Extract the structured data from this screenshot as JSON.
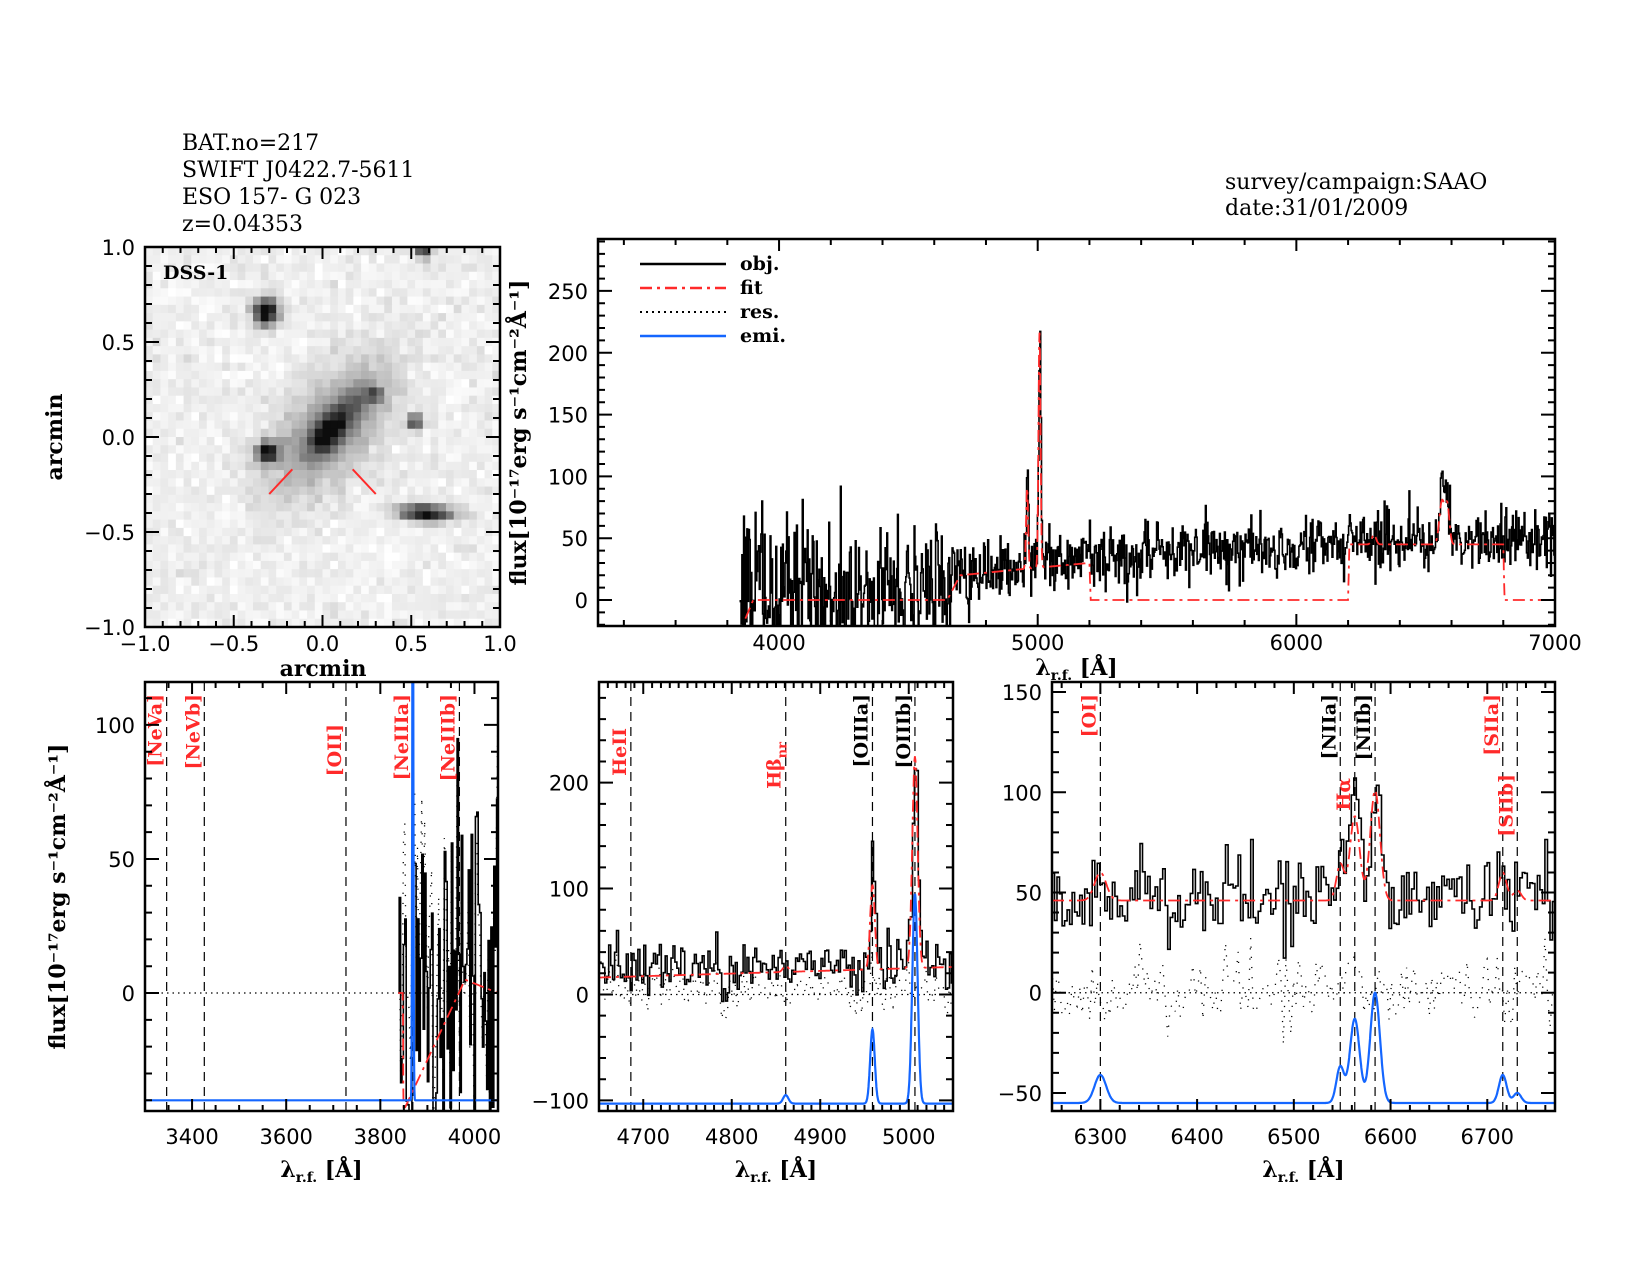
{
  "header": {
    "bat_no": "BAT.no=217",
    "swift_name": "SWIFT J0422.7-5611",
    "object_name": "ESO 157- G 023",
    "redshift": "z=0.04353",
    "survey": "survey/campaign:SAAO",
    "date": "date:31/01/2009"
  },
  "colors": {
    "obj": "#000000",
    "fit": "#ff2a2a",
    "res": "#000000",
    "emi": "#1466ff",
    "label_red": "#ff2a2a",
    "label_black": "#000000"
  },
  "image_panel": {
    "survey_label": "DSS-1",
    "xlabel": "arcmin",
    "ylabel": "arcmin",
    "xlim": [
      -1,
      1
    ],
    "ylim": [
      -1,
      1
    ],
    "xticks": [
      -1.0,
      -0.5,
      0.0,
      0.5,
      1.0
    ],
    "yticks": [
      -1.0,
      -0.5,
      0.0,
      0.5,
      1.0
    ],
    "colormap": "inverted grayscale",
    "marker_color": "#ff2a2a"
  },
  "legend": {
    "placement": "top-left",
    "entries": [
      {
        "key": "obj",
        "label": "obj.",
        "style": "solid"
      },
      {
        "key": "fit",
        "label": "fit",
        "style": "dash-dot"
      },
      {
        "key": "res",
        "label": "res.",
        "style": "dotted"
      },
      {
        "key": "emi",
        "label": "emi.",
        "style": "solid"
      }
    ]
  },
  "chart_data": [
    {
      "id": "full",
      "type": "line",
      "title": "",
      "xlabel": {
        "symbol": "λ",
        "subscript": "r.f.",
        "unit": " [Å]"
      },
      "ylabel": "flux[10⁻¹⁷erg s⁻¹cm⁻²Å⁻¹]",
      "xlim": [
        3300,
        7000
      ],
      "ylim": [
        -21,
        292
      ],
      "xticks": [
        4000,
        5000,
        6000,
        7000
      ],
      "yticks": [
        0,
        50,
        100,
        150,
        200,
        250
      ],
      "obj": {
        "range": [
          3850,
          7000
        ],
        "continuum": [
          [
            3850,
            5
          ],
          [
            4400,
            8
          ],
          [
            4700,
            20
          ],
          [
            4950,
            30
          ],
          [
            5500,
            40
          ],
          [
            6000,
            45
          ],
          [
            6500,
            47
          ],
          [
            7000,
            50
          ]
        ],
        "noise": [
          [
            3850,
            35
          ],
          [
            4500,
            30
          ],
          [
            4800,
            15
          ],
          [
            5200,
            12
          ],
          [
            7000,
            12
          ]
        ],
        "lines": [
          [
            4959,
            70,
            4
          ],
          [
            5007,
            190,
            4
          ],
          [
            6300,
            10,
            8
          ],
          [
            6563,
            45,
            10
          ],
          [
            6584,
            35,
            8
          ]
        ]
      },
      "fit": {
        "baseline": [
          [
            3870,
            -15
          ],
          [
            3900,
            0
          ],
          [
            4650,
            0
          ],
          [
            4700,
            20
          ],
          [
            4940,
            25
          ],
          [
            5200,
            30
          ],
          [
            5205,
            0
          ],
          [
            6200,
            0
          ],
          [
            6205,
            45
          ],
          [
            6800,
            45
          ],
          [
            6805,
            0
          ],
          [
            7000,
            0
          ]
        ],
        "lines": [
          [
            4959,
            65,
            4
          ],
          [
            5007,
            190,
            4
          ],
          [
            6300,
            8,
            8
          ],
          [
            6563,
            35,
            10
          ],
          [
            6584,
            30,
            8
          ]
        ]
      },
      "show_res": false,
      "show_emi": false,
      "markers": []
    },
    {
      "id": "neon",
      "type": "line",
      "xlabel": {
        "symbol": "λ",
        "subscript": "r.f.",
        "unit": " [Å]"
      },
      "ylabel": "flux[10⁻¹⁷erg s⁻¹cm⁻²Å⁻¹]",
      "xlim": [
        3300,
        4050
      ],
      "ylim": [
        -44,
        116
      ],
      "xticks": [
        3400,
        3600,
        3800,
        4000
      ],
      "yticks": [
        0,
        50,
        100
      ],
      "obj": {
        "range": [
          3840,
          4050
        ],
        "continuum": [
          [
            3840,
            5
          ],
          [
            4050,
            15
          ]
        ],
        "noise": [
          [
            3840,
            40
          ],
          [
            4050,
            45
          ]
        ],
        "lines": []
      },
      "fit": {
        "baseline": [
          [
            3838,
            0
          ],
          [
            3848,
            0
          ],
          [
            3849,
            -44
          ],
          [
            3980,
            5
          ],
          [
            4050,
            0
          ]
        ],
        "lines": []
      },
      "show_res": true,
      "show_emi": true,
      "emi": {
        "baseline": -40,
        "lines": [
          [
            3869,
            220,
            1.2
          ]
        ]
      },
      "markers": [
        {
          "label": "[NeVa]",
          "wavelength": 3346,
          "color": "red"
        },
        {
          "label": "[NeVb]",
          "wavelength": 3426,
          "color": "red"
        },
        {
          "label": "[OII]",
          "wavelength": 3727,
          "color": "red"
        },
        {
          "label": "[NeIIIa]",
          "wavelength": 3869,
          "color": "red"
        },
        {
          "label": "[NeIIIb]",
          "wavelength": 3968,
          "color": "red"
        }
      ]
    },
    {
      "id": "hbeta",
      "type": "line",
      "xlabel": {
        "symbol": "λ",
        "subscript": "r.f.",
        "unit": " [Å]"
      },
      "ylabel": "",
      "xlim": [
        4650,
        5050
      ],
      "ylim": [
        -110,
        295
      ],
      "xticks": [
        4700,
        4800,
        4900,
        5000
      ],
      "yticks": [
        -100,
        0,
        100,
        200
      ],
      "obj": {
        "range": [
          4650,
          5050
        ],
        "continuum": [
          [
            4650,
            22
          ],
          [
            5050,
            28
          ]
        ],
        "noise": [
          [
            4650,
            13
          ],
          [
            5050,
            13
          ]
        ],
        "lines": [
          [
            4959,
            100,
            2.6
          ],
          [
            5007,
            195,
            3
          ]
        ]
      },
      "fit": {
        "baseline": [
          [
            4650,
            16
          ],
          [
            5050,
            26
          ]
        ],
        "lines": [
          [
            4861,
            6,
            3
          ],
          [
            4959,
            80,
            2.6
          ],
          [
            5007,
            200,
            3
          ]
        ]
      },
      "show_res": true,
      "show_emi": true,
      "emi": {
        "baseline": -103,
        "lines": [
          [
            4861,
            8,
            3
          ],
          [
            4959,
            70,
            2.6
          ],
          [
            5007,
            198,
            3
          ]
        ]
      },
      "markers": [
        {
          "label": "HeII",
          "wavelength": 4686,
          "color": "red"
        },
        {
          "label": "Hβ",
          "sub": "nr",
          "wavelength": 4861,
          "color": "red"
        },
        {
          "label": "[OIIIa]",
          "wavelength": 4959,
          "color": "black"
        },
        {
          "label": "[OIIIb]",
          "wavelength": 5007,
          "color": "black"
        }
      ]
    },
    {
      "id": "halpha",
      "type": "line",
      "xlabel": {
        "symbol": "λ",
        "subscript": "r.f.",
        "unit": " [Å]"
      },
      "ylabel": "",
      "xlim": [
        6250,
        6770
      ],
      "ylim": [
        -59,
        155
      ],
      "xticks": [
        6300,
        6400,
        6500,
        6600,
        6700
      ],
      "yticks": [
        -50,
        0,
        50,
        100,
        150
      ],
      "obj": {
        "range": [
          6250,
          6770
        ],
        "continuum": [
          [
            6250,
            47
          ],
          [
            6770,
            48
          ]
        ],
        "noise": [
          [
            6250,
            11
          ],
          [
            6770,
            11
          ]
        ],
        "lines": [
          [
            6300,
            12,
            6
          ],
          [
            6548,
            20,
            4
          ],
          [
            6563,
            55,
            5
          ],
          [
            6584,
            50,
            5
          ],
          [
            6716,
            12,
            4
          ],
          [
            6731,
            8,
            4
          ]
        ]
      },
      "fit": {
        "baseline": [
          [
            6250,
            46
          ],
          [
            6770,
            46
          ]
        ],
        "lines": [
          [
            6300,
            14,
            6
          ],
          [
            6548,
            18,
            4
          ],
          [
            6563,
            42,
            5
          ],
          [
            6584,
            55,
            5
          ],
          [
            6716,
            14,
            4
          ],
          [
            6731,
            5,
            4
          ]
        ]
      },
      "show_res": true,
      "show_emi": true,
      "emi": {
        "baseline": -55,
        "lines": [
          [
            6300,
            14,
            6
          ],
          [
            6548,
            18,
            4
          ],
          [
            6563,
            42,
            5
          ],
          [
            6584,
            55,
            5
          ],
          [
            6716,
            14,
            4
          ],
          [
            6731,
            5,
            4
          ]
        ]
      },
      "markers": [
        {
          "label": "[OI]",
          "wavelength": 6300,
          "color": "red"
        },
        {
          "label": "[NIIa]",
          "wavelength": 6548,
          "color": "black"
        },
        {
          "label": "Hα",
          "wavelength": 6563,
          "color": "red"
        },
        {
          "label": "[NIIb]",
          "wavelength": 6584,
          "color": "black"
        },
        {
          "label": "[SIIa]",
          "wavelength": 6716,
          "color": "red"
        },
        {
          "label": "[SIIb]",
          "wavelength": 6731,
          "color": "red"
        }
      ]
    }
  ]
}
